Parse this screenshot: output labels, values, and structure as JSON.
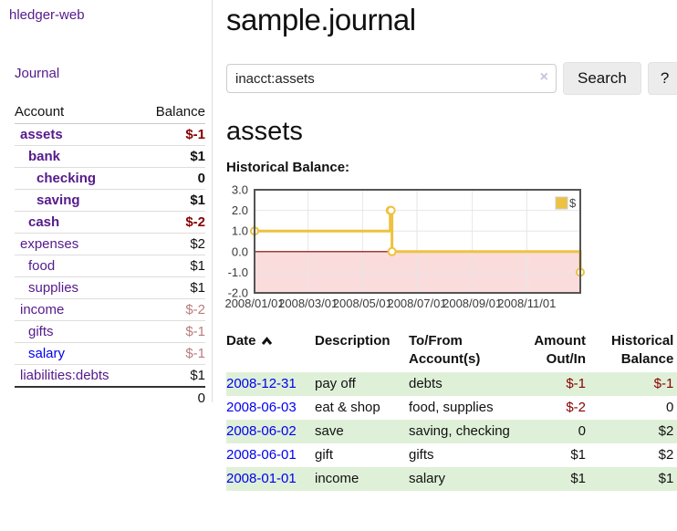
{
  "app": {
    "title": "hledger-web"
  },
  "nav": {
    "journal_label": "Journal"
  },
  "sidebar": {
    "header": {
      "account": "Account",
      "balance": "Balance"
    },
    "accounts": [
      {
        "name": "assets",
        "balance": "$-1",
        "level": 0,
        "bold": true,
        "neg": "strong"
      },
      {
        "name": "bank",
        "balance": "$1",
        "level": 1,
        "bold": true,
        "neg": "none"
      },
      {
        "name": "checking",
        "balance": "0",
        "level": 2,
        "bold": true,
        "neg": "none"
      },
      {
        "name": "saving",
        "balance": "$1",
        "level": 2,
        "bold": true,
        "neg": "none"
      },
      {
        "name": "cash",
        "balance": "$-2",
        "level": 1,
        "bold": true,
        "neg": "strong"
      },
      {
        "name": "expenses",
        "balance": "$2",
        "level": 0,
        "bold": false,
        "neg": "none"
      },
      {
        "name": "food",
        "balance": "$1",
        "level": 1,
        "bold": false,
        "neg": "none"
      },
      {
        "name": "supplies",
        "balance": "$1",
        "level": 1,
        "bold": false,
        "neg": "none"
      },
      {
        "name": "income",
        "balance": "$-2",
        "level": 0,
        "bold": false,
        "neg": "soft"
      },
      {
        "name": "gifts",
        "balance": "$-1",
        "level": 1,
        "bold": false,
        "neg": "soft"
      },
      {
        "name": "salary",
        "balance": "$-1",
        "level": 1,
        "bold": false,
        "neg": "soft",
        "link": "blue"
      },
      {
        "name": "liabilities:debts",
        "balance": "$1",
        "level": 0,
        "bold": false,
        "neg": "none"
      }
    ],
    "total": "0"
  },
  "header": {
    "title": "sample.journal"
  },
  "search": {
    "value": "inacct:assets",
    "clear_icon": "×",
    "button_label": "Search",
    "help_label": "?"
  },
  "account_page": {
    "heading": "assets",
    "chart_label": "Historical Balance:"
  },
  "chart_data": {
    "type": "line",
    "title": "Historical Balance",
    "steps": true,
    "x_unit": "days since 2008-01-01",
    "xlim": [
      0,
      365
    ],
    "ylim": [
      -2,
      3
    ],
    "yticks": [
      3.0,
      2.0,
      1.0,
      0.0,
      -1.0,
      -2.0
    ],
    "xticks": [
      {
        "pos": 0,
        "label": "2008/01/01"
      },
      {
        "pos": 60,
        "label": "2008/03/01"
      },
      {
        "pos": 121,
        "label": "2008/05/01"
      },
      {
        "pos": 182,
        "label": "2008/07/01"
      },
      {
        "pos": 244,
        "label": "2008/09/01"
      },
      {
        "pos": 305,
        "label": "2008/11/01"
      }
    ],
    "series": [
      {
        "name": "$",
        "color": "#edc240",
        "points": [
          {
            "date": "2008-01-01",
            "x": 0,
            "y": 1
          },
          {
            "date": "2008-06-01",
            "x": 152,
            "y": 2
          },
          {
            "date": "2008-06-02",
            "x": 153,
            "y": 2
          },
          {
            "date": "2008-06-03",
            "x": 154,
            "y": 0
          },
          {
            "date": "2008-12-31",
            "x": 365,
            "y": -1
          }
        ]
      }
    ],
    "legend": {
      "label": "$",
      "position": "top-right"
    },
    "grid": true,
    "grid_color": "#e6e6e6",
    "negative_fill": "#fbdcdc",
    "zero_line_color": "#800000",
    "border_color": "#545454"
  },
  "register": {
    "columns": {
      "date": "Date",
      "description": "Description",
      "tofrom_line1": "To/From",
      "tofrom_line2": "Account(s)",
      "amount_line1": "Amount",
      "amount_line2": "Out/In",
      "balance_line1": "Historical",
      "balance_line2": "Balance"
    },
    "rows": [
      {
        "date": "2008-12-31",
        "description": "pay off",
        "accounts": "debts",
        "amount": "$-1",
        "amount_negative": true,
        "balance": "$-1",
        "balance_negative": true
      },
      {
        "date": "2008-06-03",
        "description": "eat & shop",
        "accounts": "food, supplies",
        "amount": "$-2",
        "amount_negative": true,
        "balance": "0",
        "balance_negative": false
      },
      {
        "date": "2008-06-02",
        "description": "save",
        "accounts": "saving, checking",
        "amount": "0",
        "amount_negative": false,
        "balance": "$2",
        "balance_negative": false
      },
      {
        "date": "2008-06-01",
        "description": "gift",
        "accounts": "gifts",
        "amount": "$1",
        "amount_negative": false,
        "balance": "$2",
        "balance_negative": false
      },
      {
        "date": "2008-01-01",
        "description": "income",
        "accounts": "salary",
        "amount": "$1",
        "amount_negative": false,
        "balance": "$1",
        "balance_negative": false
      }
    ]
  }
}
